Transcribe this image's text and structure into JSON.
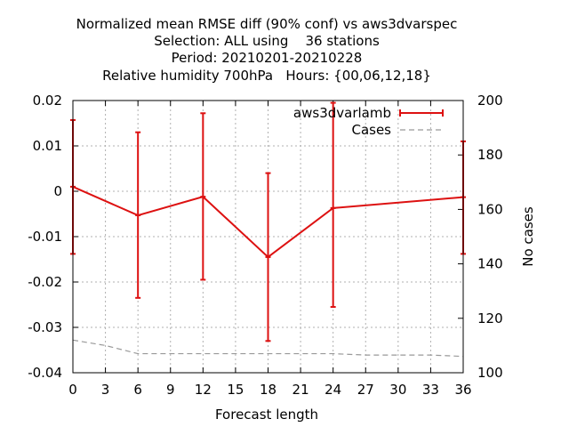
{
  "chart_data": {
    "type": "line",
    "title_lines": [
      "Normalized mean RMSE diff (90% conf) vs aws3dvarspec",
      "Selection: ALL using    36 stations",
      "Period: 20210201-20210228",
      "Relative humidity 700hPa   Hours: {00,06,12,18}"
    ],
    "xlabel": "Forecast length",
    "ylabel": "",
    "y2label": "No cases",
    "xlim": [
      0,
      36
    ],
    "ylim": [
      -0.04,
      0.02
    ],
    "y2lim": [
      100,
      200
    ],
    "xticks": [
      "0",
      "3",
      "6",
      "9",
      "12",
      "15",
      "18",
      "21",
      "24",
      "27",
      "30",
      "33",
      "36"
    ],
    "yticks": [
      "0.02",
      "0.01",
      "0",
      "-0.01",
      "-0.02",
      "-0.03",
      "-0.04"
    ],
    "y2ticks": [
      "200",
      "180",
      "160",
      "140",
      "120",
      "100"
    ],
    "grid": true,
    "legend_position": "top-right",
    "series": [
      {
        "name": "aws3dvarlamb",
        "color": "#dd1111",
        "axis": "y",
        "x": [
          0,
          6,
          12,
          18,
          24,
          36
        ],
        "values": [
          0.001,
          -0.0053,
          -0.0012,
          -0.0145,
          -0.0037,
          -0.0013
        ],
        "error_low": [
          -0.0138,
          -0.0235,
          -0.0195,
          -0.033,
          -0.0255,
          -0.0138
        ],
        "error_high": [
          0.0157,
          0.013,
          0.0172,
          0.004,
          0.0195,
          0.011
        ]
      },
      {
        "name": "Cases",
        "color": "#999999",
        "axis": "y2",
        "dashed": true,
        "x": [
          0,
          3,
          6,
          9,
          12,
          15,
          18,
          21,
          24,
          27,
          30,
          33,
          36
        ],
        "values": [
          112,
          110,
          107,
          107,
          107,
          107,
          107,
          107,
          107,
          106.5,
          106.5,
          106.5,
          106
        ]
      }
    ]
  }
}
